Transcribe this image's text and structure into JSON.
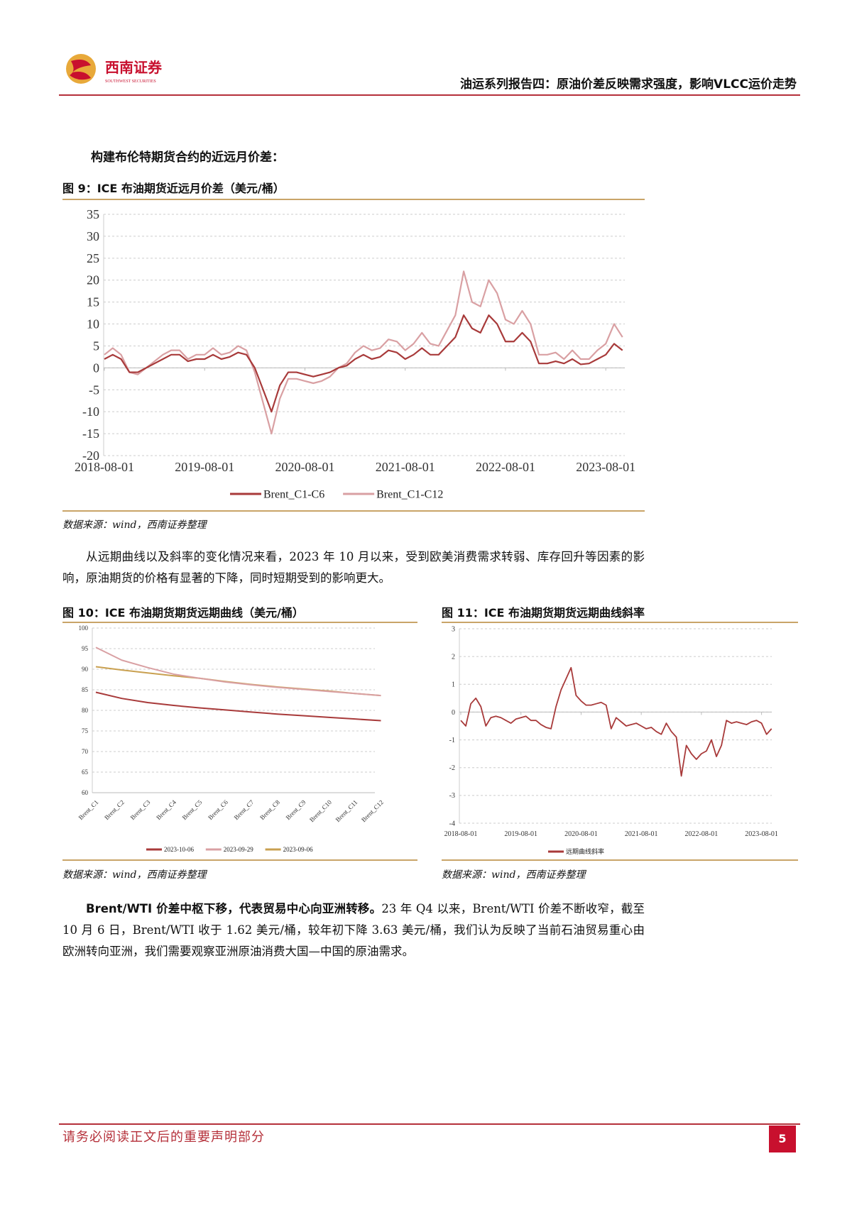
{
  "header": {
    "logo_cn": "西南证券",
    "logo_en": "SOUTHWEST SECURITIES",
    "report_title": "油运系列报告四：原油价差反映需求强度，影响VLCC运价走势"
  },
  "intro": "构建布伦特期货合约的近远月价差：",
  "fig9": {
    "title": "图 9：ICE 布油期货近远月价差（美元/桶）",
    "source": "数据来源：wind，西南证券整理"
  },
  "para1": "从远期曲线以及斜率的变化情况来看，2023 年 10 月以来，受到欧美消费需求转弱、库存回升等因素的影响，原油期货的价格有显著的下降，同时短期受到的影响更大。",
  "fig10": {
    "title": "图 10：ICE 布油期货期货远期曲线（美元/桶）",
    "source": "数据来源：wind，西南证券整理"
  },
  "fig11": {
    "title": "图 11：ICE 布油期货期货远期曲线斜率",
    "source": "数据来源：wind，西南证券整理"
  },
  "para2_bold": "Brent/WTI 价差中枢下移，代表贸易中心向亚洲转移。",
  "para2": "23 年 Q4 以来，Brent/WTI 价差不断收窄，截至 10 月 6 日，Brent/WTI 收于 1.62 美元/桶，较年初下降 3.63 美元/桶，我们认为反映了当前石油贸易重心由欧洲转向亚洲，我们需要观察亚洲原油消费大国—中国的原油需求。",
  "footer": {
    "disclaimer": "请务必阅读正文后的重要声明部分",
    "page": "5"
  },
  "colors": {
    "brand_red": "#b5303a",
    "gold": "#c9a468",
    "dark_red": "#a83a3a",
    "pink": "#d9a0a3",
    "orange": "#c9a050"
  },
  "chart_data": [
    {
      "type": "line",
      "ylim": [
        -20,
        35
      ],
      "yticks": [
        35,
        30,
        25,
        20,
        15,
        10,
        5,
        0,
        -5,
        -10,
        -15,
        -20
      ],
      "xticks": [
        "2018-08-01",
        "2019-08-01",
        "2020-08-01",
        "2021-08-01",
        "2022-08-01",
        "2023-08-01"
      ],
      "grid": true,
      "legend": "bottom",
      "x_start": "2018-08",
      "x_step": "month",
      "series": [
        {
          "name": "Brent_C1-C6",
          "color": "#a83a3a",
          "values": [
            2,
            3,
            2,
            -1,
            -1,
            0,
            1,
            2,
            3,
            3,
            1.5,
            2,
            2,
            3,
            2,
            2.5,
            3.5,
            3,
            0,
            -5,
            -10,
            -4,
            -1,
            -1,
            -1.5,
            -2,
            -1.5,
            -1,
            0,
            0.5,
            2,
            3,
            2,
            2.5,
            4,
            3.5,
            2,
            3,
            4.5,
            3,
            3,
            5,
            7,
            12,
            9,
            8,
            12,
            10,
            6,
            6,
            8,
            6,
            1,
            1,
            1.5,
            1,
            2,
            0.8,
            1,
            2,
            3,
            5.5,
            4
          ]
        },
        {
          "name": "Brent_C1-C12",
          "color": "#d9a0a3",
          "values": [
            3,
            4.5,
            3,
            -1,
            -1.5,
            0,
            1.5,
            3,
            4,
            4,
            2,
            3,
            3,
            4.5,
            3,
            3.5,
            5,
            4,
            -1,
            -8,
            -15,
            -7,
            -2.5,
            -2.5,
            -3,
            -3.5,
            -3,
            -2,
            0,
            1,
            3.5,
            5,
            4,
            4.5,
            6.5,
            6,
            4,
            5.5,
            8,
            5.5,
            5,
            8.5,
            12,
            22,
            15,
            14,
            20,
            17,
            11,
            10,
            13,
            10,
            3,
            3,
            3.5,
            2,
            4,
            2,
            2,
            4,
            5.5,
            10,
            7
          ]
        }
      ]
    },
    {
      "type": "line",
      "ylim": [
        60,
        100
      ],
      "yticks": [
        100,
        95,
        90,
        85,
        80,
        75,
        70,
        65,
        60
      ],
      "categories": [
        "Brent_C1",
        "Brent_C2",
        "Brent_C3",
        "Brent_C4",
        "Brent_C5",
        "Brent_C6",
        "Brent_C7",
        "Brent_C8",
        "Brent_C9",
        "Brent_C10",
        "Brent_C11",
        "Brent_C12"
      ],
      "grid": true,
      "legend": "bottom",
      "series": [
        {
          "name": "2023-10-06",
          "color": "#a83a3a",
          "values": [
            84.4,
            82.9,
            81.9,
            81.2,
            80.6,
            80.1,
            79.6,
            79.1,
            78.7,
            78.3,
            77.9,
            77.5
          ]
        },
        {
          "name": "2023-09-29",
          "color": "#d9a0a3",
          "values": [
            95.3,
            92.2,
            90.4,
            88.8,
            87.8,
            86.9,
            86.2,
            85.6,
            85.1,
            84.6,
            84.1,
            83.6
          ]
        },
        {
          "name": "2023-09-06",
          "color": "#c9a050",
          "values": [
            90.6,
            89.8,
            89.1,
            88.4,
            87.8,
            87.0,
            86.3,
            85.7,
            85.2,
            84.7,
            84.1,
            83.6
          ]
        }
      ]
    },
    {
      "type": "line",
      "ylim": [
        -4,
        3
      ],
      "yticks": [
        3,
        2,
        1,
        0,
        -1,
        -2,
        -3,
        -4
      ],
      "xticks": [
        "2018-08-01",
        "2019-08-01",
        "2020-08-01",
        "2021-08-01",
        "2022-08-01",
        "2023-08-01"
      ],
      "grid": true,
      "legend": "bottom",
      "x_start": "2018-08",
      "x_step": "month",
      "series": [
        {
          "name": "远期曲线斜率",
          "color": "#a83a3a",
          "values": [
            -0.3,
            -0.5,
            0.3,
            0.5,
            0.2,
            -0.5,
            -0.2,
            -0.15,
            -0.2,
            -0.3,
            -0.4,
            -0.25,
            -0.2,
            -0.15,
            -0.3,
            -0.3,
            -0.45,
            -0.55,
            -0.6,
            0.2,
            0.8,
            1.2,
            1.6,
            0.6,
            0.4,
            0.25,
            0.25,
            0.3,
            0.35,
            0.25,
            -0.6,
            -0.2,
            -0.35,
            -0.5,
            -0.45,
            -0.4,
            -0.5,
            -0.6,
            -0.55,
            -0.7,
            -0.8,
            -0.4,
            -0.7,
            -0.9,
            -2.3,
            -1.2,
            -1.5,
            -1.7,
            -1.5,
            -1.4,
            -1.0,
            -1.6,
            -1.2,
            -0.3,
            -0.4,
            -0.35,
            -0.4,
            -0.45,
            -0.35,
            -0.3,
            -0.4,
            -0.8,
            -0.6
          ]
        }
      ]
    }
  ]
}
